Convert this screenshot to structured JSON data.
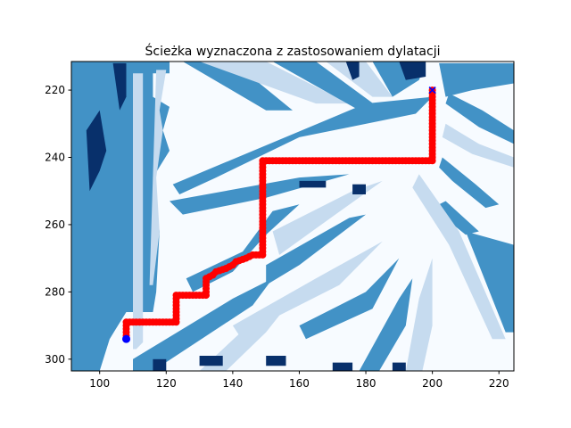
{
  "chart_data": {
    "type": "heatmap",
    "title": "Ścieżka wyznaczona z zastosowaniem dylatacji",
    "xlabel": "",
    "ylabel": "",
    "xlim": [
      91.5,
      224.5
    ],
    "ylim": [
      303.5,
      211.5
    ],
    "y_inverted": true,
    "grid": false,
    "legend": "none",
    "x_ticks": [
      100,
      120,
      140,
      160,
      180,
      200,
      220
    ],
    "y_ticks": [
      220,
      240,
      260,
      280,
      300
    ],
    "colormap": "Blues",
    "colors": {
      "background": "#f7fbff",
      "light": "#c6dbef",
      "medium": "#4292c6",
      "dark": "#08306b",
      "path": "#ff0000",
      "start": "#0000ff",
      "goal": "#0000ff"
    },
    "path": {
      "name": "",
      "points": [
        [
          200,
          220
        ],
        [
          200,
          241
        ],
        [
          149,
          241
        ],
        [
          149,
          269
        ],
        [
          146,
          269
        ],
        [
          144,
          270
        ],
        [
          141,
          271
        ],
        [
          140,
          272
        ],
        [
          138,
          273
        ],
        [
          135,
          274
        ],
        [
          134,
          275
        ],
        [
          132,
          276
        ],
        [
          132,
          281
        ],
        [
          123,
          281
        ],
        [
          123,
          289
        ],
        [
          108,
          289
        ],
        [
          108,
          294
        ]
      ]
    },
    "start": {
      "x": 108,
      "y": 294,
      "marker": "circle"
    },
    "goal": {
      "x": 200,
      "y": 220,
      "marker": "x"
    }
  }
}
